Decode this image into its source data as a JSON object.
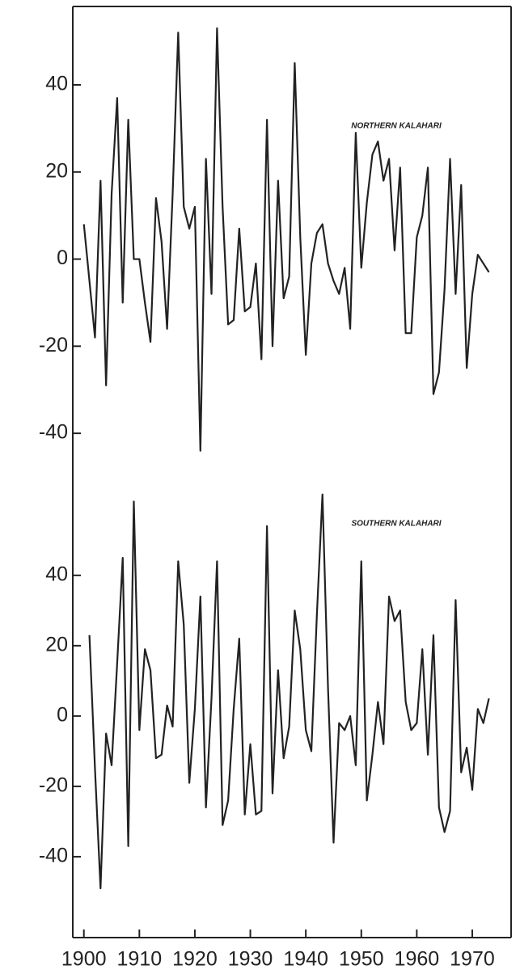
{
  "chart_data": [
    {
      "type": "line",
      "annotation": "NORTHERN KALAHARI",
      "x": [
        1900,
        1901,
        1902,
        1903,
        1904,
        1905,
        1906,
        1907,
        1908,
        1909,
        1910,
        1911,
        1912,
        1913,
        1914,
        1915,
        1916,
        1917,
        1918,
        1919,
        1920,
        1921,
        1922,
        1923,
        1924,
        1925,
        1926,
        1927,
        1928,
        1929,
        1930,
        1931,
        1932,
        1933,
        1934,
        1935,
        1936,
        1937,
        1938,
        1939,
        1940,
        1941,
        1942,
        1943,
        1944,
        1945,
        1946,
        1947,
        1948,
        1949,
        1950,
        1951,
        1952,
        1953,
        1954,
        1955,
        1956,
        1957,
        1958,
        1959,
        1960,
        1961,
        1962,
        1963,
        1964,
        1965,
        1966,
        1967,
        1968,
        1969,
        1970,
        1971,
        1972,
        1973
      ],
      "series": [
        {
          "color": "#222222",
          "values": [
            8,
            -5,
            -18,
            18,
            -29,
            15,
            37,
            -10,
            32,
            0,
            0,
            -10,
            -19,
            14,
            4,
            -16,
            15,
            52,
            12,
            7,
            12,
            -44,
            23,
            -8,
            53,
            12,
            -15,
            -14,
            7,
            -12,
            -11,
            -1,
            -23,
            32,
            -20,
            18,
            -9,
            -4,
            45,
            5,
            -22,
            -1,
            6,
            8,
            -1,
            -5,
            -8,
            -2,
            -16,
            29,
            -2,
            13,
            24,
            27,
            18,
            23,
            2,
            21,
            -17,
            -17,
            5,
            10,
            21,
            -31,
            -26,
            -7,
            23,
            -8,
            17,
            -25,
            -8,
            1,
            -1,
            -3
          ]
        }
      ],
      "xlim": [
        1898,
        1977
      ],
      "ylim": [
        -50,
        58
      ],
      "yticks": [
        -40,
        -20,
        0,
        20,
        40
      ]
    },
    {
      "type": "line",
      "annotation": "SOUTHERN KALAHARI",
      "x": [
        1901,
        1902,
        1903,
        1904,
        1905,
        1906,
        1907,
        1908,
        1909,
        1910,
        1911,
        1912,
        1913,
        1914,
        1915,
        1916,
        1917,
        1918,
        1919,
        1920,
        1921,
        1922,
        1923,
        1924,
        1925,
        1926,
        1927,
        1928,
        1929,
        1930,
        1931,
        1932,
        1933,
        1934,
        1935,
        1936,
        1937,
        1938,
        1939,
        1940,
        1941,
        1942,
        1943,
        1944,
        1945,
        1946,
        1947,
        1948,
        1949,
        1950,
        1951,
        1952,
        1953,
        1954,
        1955,
        1956,
        1957,
        1958,
        1959,
        1960,
        1961,
        1962,
        1963,
        1964,
        1965,
        1966,
        1967,
        1968,
        1969,
        1970,
        1971,
        1972,
        1973
      ],
      "series": [
        {
          "color": "#222222",
          "values": [
            23,
            -15,
            -49,
            -5,
            -14,
            15,
            45,
            -37,
            61,
            -4,
            19,
            13,
            -12,
            -11,
            3,
            -3,
            44,
            26,
            -19,
            2,
            34,
            -26,
            5,
            44,
            -31,
            -24,
            2,
            22,
            -28,
            -8,
            -28,
            -27,
            54,
            -22,
            13,
            -12,
            -3,
            30,
            19,
            -4,
            -10,
            29,
            63,
            8,
            -36,
            -2,
            -4,
            0,
            -14,
            44,
            -24,
            -11,
            4,
            -8,
            34,
            27,
            30,
            4,
            -4,
            -2,
            19,
            -11,
            23,
            -26,
            -33,
            -27,
            33,
            -16,
            -9,
            -21,
            2,
            -2,
            5
          ]
        }
      ],
      "xlim": [
        1898,
        1977
      ],
      "ylim": [
        -63,
        68
      ],
      "yticks": [
        -40,
        -20,
        0,
        20,
        40
      ],
      "xticks": [
        1900,
        1910,
        1920,
        1930,
        1940,
        1950,
        1960,
        1970
      ]
    }
  ]
}
